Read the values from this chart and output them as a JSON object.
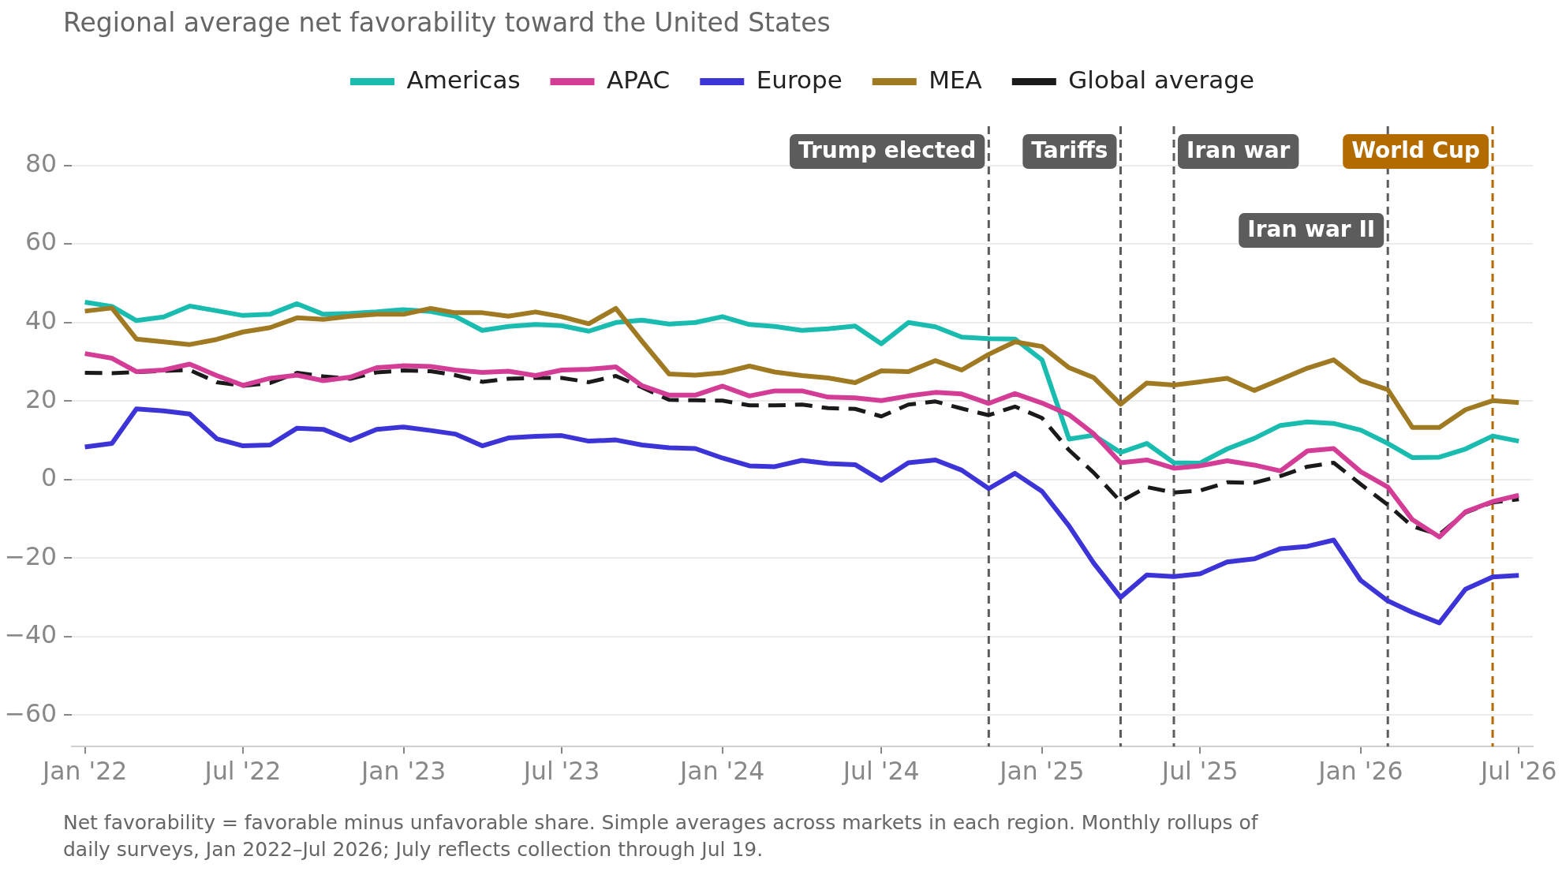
{
  "chart_data": {
    "type": "line",
    "title": "Regional average net favorability toward the United States",
    "x": [
      "2022-01",
      "2022-02",
      "2022-03",
      "2022-04",
      "2022-05",
      "2022-06",
      "2022-07",
      "2022-08",
      "2022-09",
      "2022-10",
      "2022-11",
      "2022-12",
      "2023-01",
      "2023-02",
      "2023-03",
      "2023-04",
      "2023-05",
      "2023-06",
      "2023-07",
      "2023-08",
      "2023-09",
      "2023-10",
      "2023-11",
      "2023-12",
      "2024-01",
      "2024-02",
      "2024-03",
      "2024-04",
      "2024-05",
      "2024-06",
      "2024-07",
      "2024-08",
      "2024-09",
      "2024-10",
      "2024-11",
      "2024-12",
      "2025-01",
      "2025-02",
      "2025-03",
      "2025-04",
      "2025-05",
      "2025-06",
      "2025-07",
      "2025-08",
      "2025-09",
      "2025-10",
      "2025-11",
      "2025-12",
      "2026-01",
      "2026-02",
      "2026-03",
      "2026-04",
      "2026-05",
      "2026-06",
      "2026-07"
    ],
    "series": [
      {
        "name": "Americas",
        "color": "#1abcb0",
        "values": [
          45.2,
          44.1,
          40.5,
          41.4,
          44.2,
          43.0,
          41.8,
          42.1,
          44.8,
          42.1,
          42.3,
          42.7,
          43.3,
          42.8,
          41.6,
          38.0,
          39.0,
          39.5,
          39.2,
          37.8,
          40.0,
          40.6,
          39.6,
          40.0,
          41.5,
          39.5,
          39.0,
          38.0,
          38.4,
          39.1,
          34.6,
          40.0,
          38.9,
          36.3,
          35.9,
          35.8,
          30.5,
          10.3,
          11.3,
          6.9,
          9.2,
          4.3,
          4.2,
          7.8,
          10.5,
          13.8,
          14.7,
          14.3,
          12.6,
          9.2,
          5.6,
          5.7,
          7.8,
          11.1,
          9.8
        ]
      },
      {
        "name": "APAC",
        "color": "#d43d96",
        "values": [
          32.1,
          30.9,
          27.5,
          27.9,
          29.4,
          26.5,
          24.0,
          25.8,
          26.6,
          25.2,
          26.1,
          28.5,
          29.0,
          28.8,
          27.9,
          27.3,
          27.6,
          26.5,
          27.9,
          28.1,
          28.7,
          23.9,
          21.5,
          21.5,
          23.8,
          21.3,
          22.6,
          22.6,
          21.0,
          20.8,
          20.1,
          21.3,
          22.2,
          21.8,
          19.4,
          21.9,
          19.5,
          16.5,
          11.7,
          4.3,
          5.0,
          2.9,
          3.5,
          4.8,
          3.7,
          2.2,
          7.3,
          7.9,
          2.0,
          -1.9,
          -10.2,
          -14.6,
          -8.2,
          -5.6,
          -4.0
        ]
      },
      {
        "name": "Europe",
        "color": "#3d34d8",
        "values": [
          8.3,
          9.2,
          18.0,
          17.5,
          16.7,
          10.4,
          8.6,
          8.8,
          13.1,
          12.8,
          10.0,
          12.8,
          13.4,
          12.5,
          11.6,
          8.6,
          10.6,
          11.0,
          11.2,
          9.8,
          10.1,
          8.8,
          8.1,
          7.9,
          5.5,
          3.5,
          3.3,
          4.9,
          4.1,
          3.8,
          -0.2,
          4.3,
          5.0,
          2.4,
          -2.3,
          1.6,
          -3.0,
          -11.8,
          -21.2,
          -30.0,
          -24.3,
          -24.7,
          -24.0,
          -21.0,
          -20.2,
          -17.6,
          -17.0,
          -15.4,
          -25.7,
          -30.9,
          -33.8,
          -36.5,
          -27.9,
          -24.8,
          -24.4
        ]
      },
      {
        "name": "MEA",
        "color": "#a07a22",
        "values": [
          42.9,
          43.7,
          35.8,
          35.1,
          34.4,
          35.7,
          37.6,
          38.7,
          41.2,
          40.8,
          41.6,
          42.1,
          42.1,
          43.6,
          42.5,
          42.5,
          41.6,
          42.7,
          41.5,
          39.7,
          43.6,
          35.2,
          26.9,
          26.6,
          27.2,
          28.9,
          27.4,
          26.5,
          25.9,
          24.7,
          27.7,
          27.5,
          30.3,
          27.9,
          31.9,
          35.1,
          33.9,
          28.5,
          26.0,
          19.2,
          24.6,
          24.1,
          24.9,
          25.8,
          22.7,
          25.5,
          28.4,
          30.5,
          25.2,
          22.9,
          13.3,
          13.3,
          17.8,
          20.1,
          19.6
        ]
      },
      {
        "name": "Global average",
        "color": "#1a1a1a",
        "line_style": "dashed",
        "values": [
          27.2,
          27.1,
          27.4,
          27.7,
          27.9,
          24.8,
          23.9,
          24.6,
          27.2,
          26.3,
          25.7,
          27.3,
          27.8,
          27.6,
          26.6,
          24.9,
          25.7,
          25.9,
          25.9,
          24.8,
          26.4,
          23.5,
          20.3,
          20.2,
          20.1,
          18.9,
          18.9,
          19.1,
          18.2,
          18.0,
          16.1,
          19.1,
          19.9,
          18.1,
          16.4,
          18.6,
          15.7,
          7.5,
          1.8,
          -5.6,
          -1.9,
          -3.3,
          -2.8,
          -0.7,
          -0.8,
          0.9,
          3.3,
          4.3,
          -1.2,
          -6.4,
          -11.9,
          -14.0,
          -8.4,
          -5.8,
          -5.0
        ]
      }
    ],
    "xlim": [
      "2021-12-17",
      "2026-07-17"
    ],
    "xticks": [
      {
        "value": "2022-01",
        "label": "Jan '22"
      },
      {
        "value": "2022-07",
        "label": "Jul '22"
      },
      {
        "value": "2023-01",
        "label": "Jan '23"
      },
      {
        "value": "2023-07",
        "label": "Jul '23"
      },
      {
        "value": "2024-01",
        "label": "Jan '24"
      },
      {
        "value": "2024-07",
        "label": "Jul '24"
      },
      {
        "value": "2025-01",
        "label": "Jan '25"
      },
      {
        "value": "2025-07",
        "label": "Jul '25"
      },
      {
        "value": "2026-01",
        "label": "Jan '26"
      },
      {
        "value": "2026-07",
        "label": "Jul '26"
      }
    ],
    "ylim": [
      -68,
      90
    ],
    "yticks": [
      -60,
      -40,
      -20,
      0,
      20,
      40,
      60,
      80
    ],
    "grid": "y",
    "legend": "top",
    "marker": "none",
    "ref_lines": [
      {
        "axis": "x",
        "value": "2024-11",
        "label": "Trump elected",
        "color": "#5c5c5c",
        "line_style": "dashed"
      },
      {
        "axis": "x",
        "value": "2025-04",
        "label": "Tariffs",
        "color": "#5c5c5c",
        "line_style": "dashed"
      },
      {
        "axis": "x",
        "value": "2025-06",
        "label": "Iran war",
        "color": "#5c5c5c",
        "line_style": "dashed"
      },
      {
        "axis": "x",
        "value": "2026-02",
        "label": "Iran war II",
        "color": "#5c5c5c",
        "line_style": "dashed"
      },
      {
        "axis": "x",
        "value": "2026-06",
        "label": "World Cup",
        "color": "#b36b00",
        "line_style": "dashed"
      }
    ],
    "annotations": [
      "Net favorability = favorable minus unfavorable share. Simple averages across markets in each region. Monthly rollups of daily surveys, Jan 2022–Jul 2026; July reflects collection through Jul 19."
    ]
  }
}
